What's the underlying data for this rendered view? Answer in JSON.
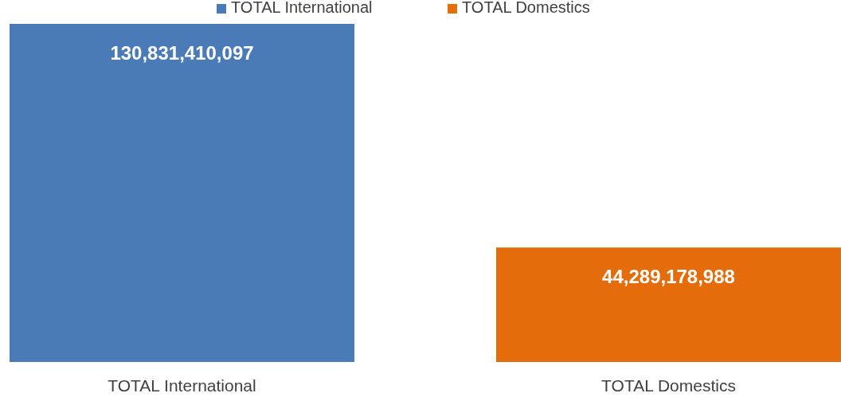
{
  "chart_data": {
    "type": "bar",
    "categories": [
      "TOTAL International",
      "TOTAL Domestics"
    ],
    "series": [
      {
        "name": "TOTAL International",
        "color": "#4a7bb7",
        "values": [
          130831410097,
          null
        ],
        "value_labels": [
          "130,831,410,097",
          null
        ]
      },
      {
        "name": "TOTAL Domestics",
        "color": "#e46c0a",
        "values": [
          null,
          44289178988
        ],
        "value_labels": [
          null,
          "44,289,178,988"
        ]
      }
    ],
    "legend": "top"
  }
}
